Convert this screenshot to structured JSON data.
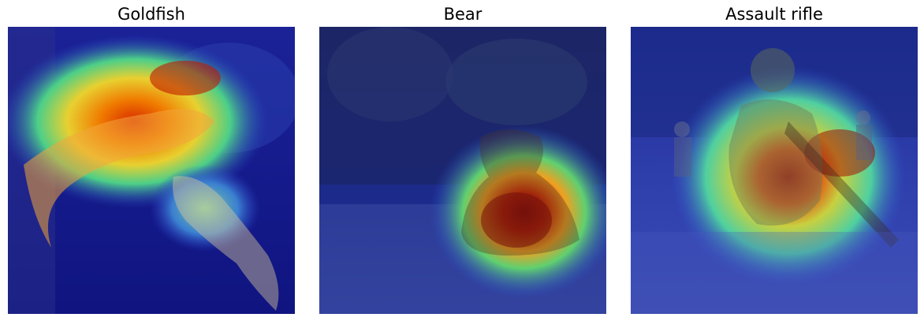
{
  "panels": [
    {
      "title": "Goldfish"
    },
    {
      "title": "Bear"
    },
    {
      "title": "Assault rifle"
    }
  ],
  "colors": {
    "heat_low": "#1a1f9e",
    "heat_mid": "#3fd07a",
    "heat_high": "#f5a000",
    "heat_peak": "#a00000"
  }
}
